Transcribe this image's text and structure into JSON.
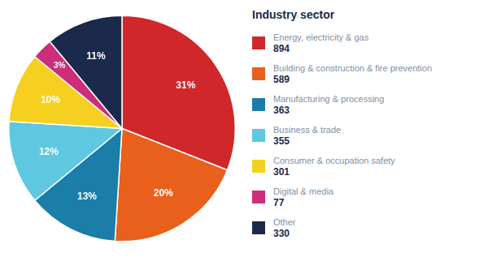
{
  "chart_data": {
    "type": "pie",
    "title": "Industry sector",
    "categories": [
      "Energy, electricity & gas",
      "Building & construction & fire prevention",
      "Manufacturing & processing",
      "Business & trade",
      "Consumer & occupation safety",
      "Digital & media",
      "Other"
    ],
    "values": [
      31,
      20,
      13,
      12,
      10,
      3,
      11
    ],
    "value_labels": [
      "31%",
      "20%",
      "13%",
      "12%",
      "10%",
      "3%",
      "11%"
    ],
    "data_labels": true,
    "counts": [
      894,
      589,
      363,
      355,
      301,
      77,
      330
    ],
    "colors": [
      "#D0272A",
      "#E8601C",
      "#1A7EA8",
      "#5EC8E0",
      "#F5D020",
      "#CC2E7A",
      "#1B2A4A"
    ],
    "legend": "right"
  }
}
